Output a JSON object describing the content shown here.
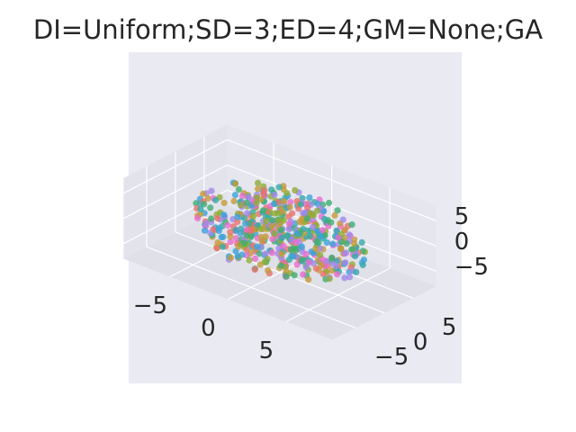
{
  "chart_data": {
    "type": "scatter",
    "projection": "3d",
    "title": "DI=Uniform;SD=3;ED=4;GM=None;GA",
    "xlabel": "",
    "ylabel": "",
    "zlabel": "",
    "x_ticks": [
      "−5",
      "0",
      "5"
    ],
    "y_ticks": [
      "−5",
      "0",
      "5"
    ],
    "z_ticks": [
      "−5",
      "0",
      "5"
    ],
    "xlim": [
      -9,
      9
    ],
    "ylim": [
      -9,
      9
    ],
    "zlim": [
      -8,
      8
    ],
    "grid": true,
    "style": "seaborn-darkgrid",
    "marker_colors": [
      "#e8726b",
      "#c69a3b",
      "#8fad36",
      "#3fae73",
      "#36aaa8",
      "#3ca3d8",
      "#a08ae8",
      "#e86bd0"
    ],
    "note_on_points": "approximately 550 points, roughly uniformly distributed within a sphere of radius about 7, colored by 8 hue categories"
  }
}
